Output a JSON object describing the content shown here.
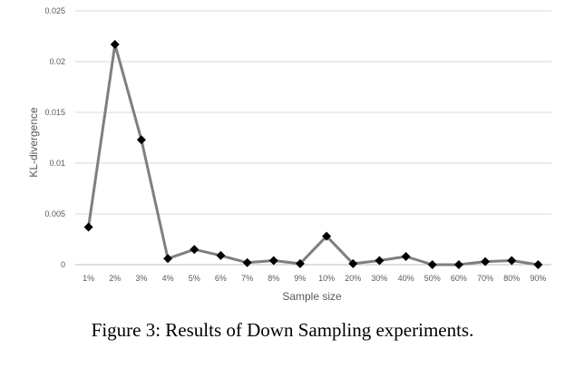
{
  "chart_data": {
    "type": "line",
    "xlabel": "Sample size",
    "ylabel": "KL-divergence",
    "ylim": [
      0,
      0.025
    ],
    "y_ticks": [
      "0",
      "0.005",
      "0.01",
      "0.015",
      "0.02",
      "0.025"
    ],
    "grid": true,
    "marker": "diamond",
    "colors": {
      "line": "#7f7f7f",
      "marker": "#000000",
      "grid": "#d9d9d9",
      "axis": "#bfbfbf"
    },
    "categories": [
      "1%",
      "2%",
      "3%",
      "4%",
      "5%",
      "6%",
      "7%",
      "8%",
      "9%",
      "10%",
      "20%",
      "30%",
      "40%",
      "50%",
      "60%",
      "70%",
      "80%",
      "90%"
    ],
    "values": [
      0.0037,
      0.0217,
      0.0123,
      0.0006,
      0.0015,
      0.0009,
      0.0002,
      0.0004,
      0.0001,
      0.0028,
      0.0001,
      0.0004,
      0.0008,
      0.0,
      0.0,
      0.0003,
      0.0004,
      0.0
    ]
  },
  "caption": "Figure 3: Results of Down Sampling experiments."
}
